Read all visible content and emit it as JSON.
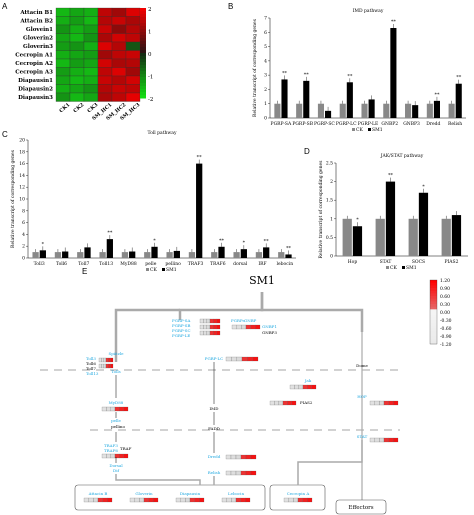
{
  "panels": {
    "A": {
      "letter": "A",
      "rows": [
        "Attacin B1",
        "Attacin B2",
        "Glovein1",
        "Gloverin2",
        "Gloverin3",
        "Cecropin A1",
        "Cecropin A2",
        "Cecropin A3",
        "Diapausin1",
        "Diapausin2",
        "Diapausin3"
      ],
      "cols": [
        "CK1",
        "CK2",
        "CK3",
        "SM_HC1",
        "SM_HC2",
        "SM_HC3"
      ],
      "scale_ticks": [
        "2",
        "1",
        "0",
        "-1",
        "-2"
      ],
      "matrix": [
        [
          -1.6,
          -1.4,
          -1.5,
          1.5,
          1.2,
          1.8
        ],
        [
          -1.5,
          -1.3,
          -1.6,
          1.4,
          1.6,
          1.3
        ],
        [
          -1.2,
          -1.5,
          -1.3,
          1.6,
          1.0,
          1.4
        ],
        [
          -1.4,
          -1.6,
          -1.2,
          1.3,
          1.7,
          1.5
        ],
        [
          -1.3,
          -1.2,
          -1.5,
          1.8,
          1.4,
          -0.5
        ],
        [
          -1.5,
          -1.4,
          -1.3,
          1.2,
          1.5,
          1.6
        ],
        [
          -1.6,
          -1.3,
          -1.4,
          1.7,
          1.3,
          1.4
        ],
        [
          -1.3,
          -1.5,
          -1.6,
          1.5,
          1.8,
          1.2
        ],
        [
          -1.4,
          -1.6,
          -1.5,
          1.6,
          1.4,
          1.7
        ],
        [
          -1.5,
          -1.4,
          -1.2,
          1.4,
          1.6,
          1.5
        ],
        [
          -1.2,
          -1.6,
          -1.4,
          1.3,
          1.5,
          1.9
        ]
      ]
    },
    "B": {
      "letter": "B",
      "title": "IMD pathway",
      "ylabel": "Relative transcript of corresponding genes",
      "legend": [
        "CK",
        "SM1"
      ],
      "categories": [
        "PGRP-SA",
        "PGRP-SB",
        "PGRP-SC",
        "PGRP-LC",
        "PGRP-LE",
        "GNBP2",
        "GNBP3",
        "Dredd",
        "Relish"
      ],
      "ck": [
        1,
        1,
        1,
        1,
        1,
        1,
        1,
        1,
        1
      ],
      "sm": [
        2.7,
        2.6,
        0.5,
        2.5,
        1.3,
        6.3,
        0.9,
        1.2,
        2.4
      ],
      "stars": [
        "**",
        "**",
        "",
        "**",
        "",
        "**",
        "",
        "**",
        "**"
      ],
      "ymax": 7,
      "yticks": [
        "0",
        "1",
        "2",
        "3",
        "4",
        "5",
        "6",
        "7"
      ]
    },
    "C": {
      "letter": "C",
      "title": "Toll pathway",
      "ylabel": "Relative transcript of corresponding genes",
      "legend": [
        "CK",
        "SM1"
      ],
      "categories": [
        "Toll3",
        "Toll6",
        "Toll7",
        "Toll13",
        "MyD88",
        "pelle",
        "pellino",
        "TRAF3",
        "TRAF6",
        "dorsal",
        "IRF",
        "lebocin"
      ],
      "ck": [
        1,
        1,
        1,
        1,
        1,
        1,
        1,
        1,
        1,
        1,
        1,
        1
      ],
      "sm": [
        1.3,
        1.1,
        1.8,
        3.2,
        1.1,
        1.9,
        1.2,
        16,
        1.9,
        1.5,
        1.8,
        0.6
      ],
      "stars": [
        "*",
        "",
        "",
        "**",
        "",
        "*",
        "",
        "**",
        "**",
        "*",
        "**",
        "**"
      ],
      "ymax": 20,
      "yticks": [
        "0",
        "2",
        "4",
        "6",
        "8",
        "10",
        "12",
        "14",
        "16",
        "18",
        "20"
      ]
    },
    "D": {
      "letter": "D",
      "title": "JAK/STAT pathway",
      "ylabel": "Relative transcript of corresponding genes",
      "legend": [
        "CK",
        "SM1"
      ],
      "categories": [
        "Hop",
        "STAT",
        "SOCS",
        "PIAS2"
      ],
      "ck": [
        1,
        1,
        1,
        1
      ],
      "sm": [
        0.8,
        2.0,
        1.7,
        1.1
      ],
      "stars": [
        "*",
        "**",
        "*",
        ""
      ],
      "ymax": 2.5,
      "yticks": [
        "0",
        "0.5",
        "1",
        "1.5",
        "2",
        "2.5"
      ]
    },
    "E": {
      "letter": "E",
      "sm1": "SM1",
      "scale_ticks": [
        "1.20",
        "0.90",
        "0.60",
        "0.30",
        "0.00",
        "-0.30",
        "-0.60",
        "-0.90",
        "-1.20"
      ],
      "labels": {
        "pgrp_group": [
          "PGRP-SA",
          "PGRP-SB",
          "PGRP-SC",
          "PGRP-LE"
        ],
        "pgrp_sa": "PGRPs",
        "gnbp": "GNBP",
        "gnbp1": "GNBP1",
        "gnbp3": "GNBP3",
        "pgrp_lc": "PGRP-LC",
        "toll_list": [
          "Toll3",
          "Toll6",
          "Toll7",
          "Toll13"
        ],
        "spatzle": "Spätzle",
        "toll": "Tolls",
        "myd88": "MyD88",
        "pelle": "pelle",
        "pellino": "pellino",
        "traf": "TRAF",
        "traf3": "TRAF3",
        "traf6": "TRAF6",
        "dorsal": "Dorsal",
        "dif": "Dif",
        "imd": "IMD",
        "fadd": "FADD",
        "dredd": "Dredd",
        "relish": "Relish",
        "dome": "Dome",
        "jak": "Jak",
        "hop": "HOP",
        "pias2": "PIAS2",
        "stat": "STAT",
        "effectors": "Effectors",
        "amps": [
          "Attacin B",
          "Gloverin",
          "Diapausin",
          "Lebocin"
        ],
        "cecropin": "Cecropin A"
      }
    }
  },
  "colors": {
    "ck": "#888888",
    "sm": "#000000",
    "blue_label": "#1fa8e0",
    "red": "#e02020",
    "green": "#22b022"
  }
}
